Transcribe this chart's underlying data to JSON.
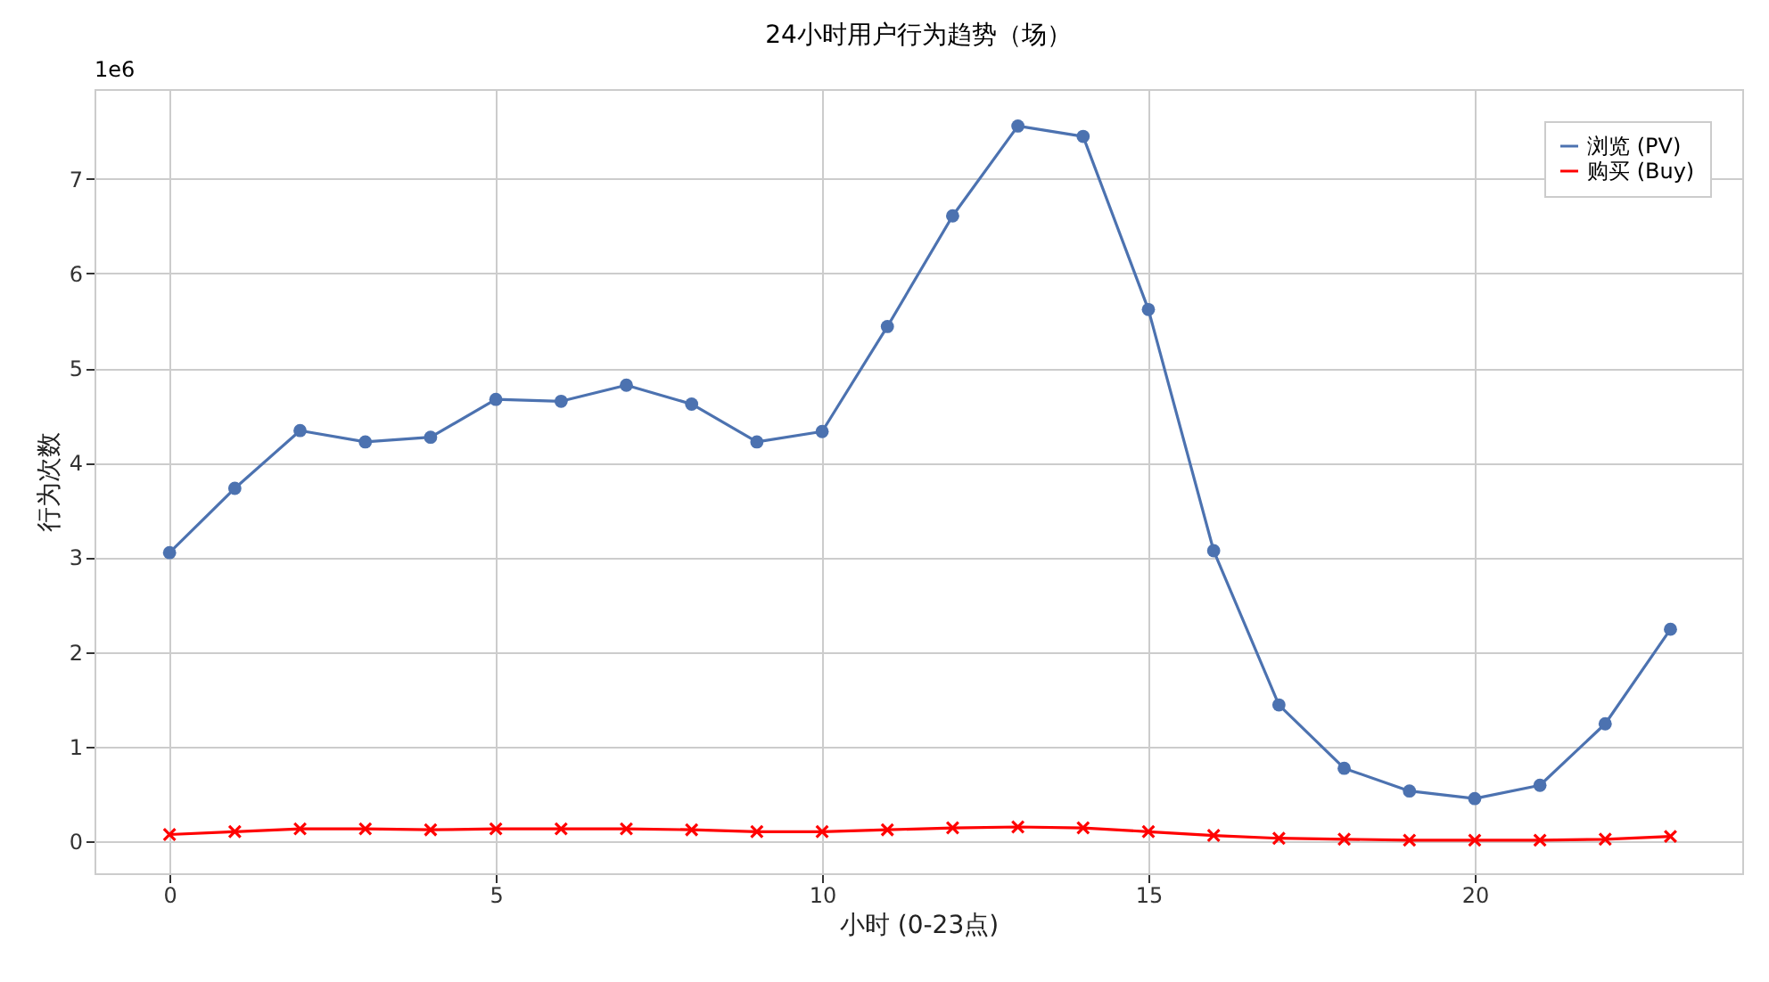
{
  "chart_data": {
    "type": "line",
    "title": "24小时用户行为趋势（场）",
    "xlabel": "小时 (0-23点)",
    "ylabel": "行为次数",
    "x": [
      0,
      1,
      2,
      3,
      4,
      5,
      6,
      7,
      8,
      9,
      10,
      11,
      12,
      13,
      14,
      15,
      16,
      17,
      18,
      19,
      20,
      21,
      22,
      23
    ],
    "series": [
      {
        "name": "浏览 (PV)",
        "color": "#4c72b0",
        "marker": "circle",
        "values": [
          3.05,
          3.73,
          4.34,
          4.22,
          4.27,
          4.67,
          4.65,
          4.82,
          4.62,
          4.22,
          4.33,
          5.44,
          6.61,
          7.56,
          7.45,
          5.62,
          3.07,
          1.44,
          0.77,
          0.53,
          0.45,
          0.59,
          1.24,
          2.24
        ]
      },
      {
        "name": "购买 (Buy)",
        "color": "#ff0000",
        "marker": "cross",
        "values": [
          0.07,
          0.1,
          0.13,
          0.13,
          0.12,
          0.13,
          0.13,
          0.13,
          0.12,
          0.1,
          0.1,
          0.12,
          0.14,
          0.15,
          0.14,
          0.1,
          0.06,
          0.03,
          0.02,
          0.01,
          0.01,
          0.01,
          0.02,
          0.05
        ]
      }
    ],
    "xlim": [
      -1.15,
      24.1
    ],
    "xticks": [
      0,
      5,
      10,
      15,
      20
    ],
    "ylim": [
      -0.34,
      7.95
    ],
    "yticks": [
      0,
      1,
      2,
      3,
      4,
      5,
      6,
      7
    ],
    "annotations": [
      "1e6"
    ],
    "grid": true,
    "legend": "top right",
    "line_style": "solid"
  }
}
